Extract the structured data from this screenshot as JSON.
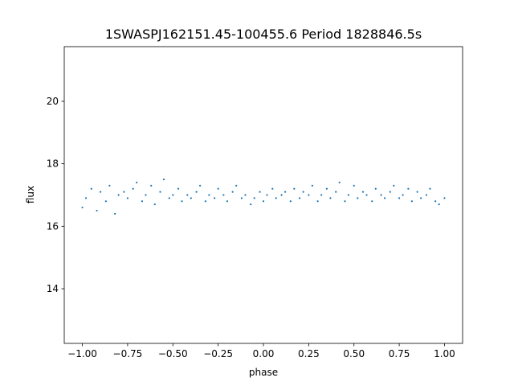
{
  "chart_data": {
    "type": "scatter",
    "title": "1SWASPJ162151.45-100455.6 Period 1828846.5s",
    "xlabel": "phase",
    "ylabel": "flux",
    "xlim": [
      -1.1,
      1.1
    ],
    "ylim": [
      12.25,
      21.75
    ],
    "xticks": [
      -1.0,
      -0.75,
      -0.5,
      -0.25,
      0.0,
      0.25,
      0.5,
      0.75,
      1.0
    ],
    "xtick_labels": [
      "−1.00",
      "−0.75",
      "−0.50",
      "−0.25",
      "0.00",
      "0.25",
      "0.50",
      "0.75",
      "1.00"
    ],
    "yticks": [
      14,
      16,
      18,
      20
    ],
    "ytick_labels": [
      "14",
      "16",
      "18",
      "20"
    ],
    "grid": false,
    "marker_color": "#1f77b4",
    "series": [
      {
        "x": [
          -1.0,
          -0.98,
          -0.95,
          -0.92,
          -0.9,
          -0.87,
          -0.85,
          -0.82,
          -0.8,
          -0.77,
          -0.75,
          -0.72,
          -0.7,
          -0.67,
          -0.65,
          -0.62,
          -0.6,
          -0.57,
          -0.55,
          -0.52,
          -0.5,
          -0.47,
          -0.45,
          -0.42,
          -0.4,
          -0.37,
          -0.35,
          -0.32,
          -0.3,
          -0.27,
          -0.25,
          -0.22,
          -0.2,
          -0.17,
          -0.15,
          -0.12,
          -0.1,
          -0.07,
          -0.05,
          -0.02,
          0.0,
          0.02,
          0.05,
          0.07,
          0.1,
          0.12,
          0.15,
          0.17,
          0.2,
          0.22,
          0.25,
          0.27,
          0.3,
          0.32,
          0.35,
          0.37,
          0.4,
          0.42,
          0.45,
          0.47,
          0.5,
          0.52,
          0.55,
          0.57,
          0.6,
          0.62,
          0.65,
          0.67,
          0.7,
          0.72,
          0.75,
          0.77,
          0.8,
          0.82,
          0.85,
          0.87,
          0.9,
          0.92,
          0.95,
          0.97,
          1.0
        ],
        "y": [
          16.6,
          16.9,
          17.2,
          16.5,
          17.1,
          16.8,
          17.3,
          16.4,
          17.0,
          17.1,
          16.9,
          17.2,
          17.4,
          16.8,
          17.0,
          17.3,
          16.7,
          17.1,
          17.5,
          16.9,
          17.0,
          17.2,
          16.8,
          17.0,
          16.9,
          17.1,
          17.3,
          16.8,
          17.0,
          16.9,
          17.2,
          17.0,
          16.8,
          17.1,
          17.3,
          16.9,
          17.0,
          16.7,
          16.9,
          17.1,
          16.8,
          17.0,
          17.2,
          16.9,
          17.0,
          17.1,
          16.8,
          17.2,
          16.9,
          17.1,
          17.0,
          17.3,
          16.8,
          17.0,
          17.2,
          16.9,
          17.1,
          17.4,
          16.8,
          17.0,
          17.3,
          16.9,
          17.1,
          17.0,
          16.8,
          17.2,
          17.0,
          16.9,
          17.1,
          17.3,
          16.9,
          17.0,
          17.2,
          16.8,
          17.1,
          16.9,
          17.0,
          17.2,
          16.8,
          16.7,
          16.9
        ]
      }
    ]
  }
}
